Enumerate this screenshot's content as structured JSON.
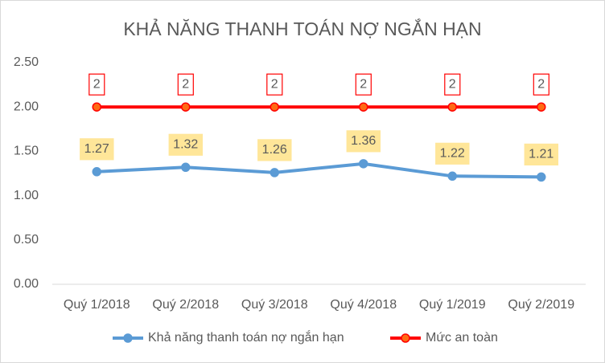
{
  "chart_data": {
    "type": "line",
    "title": "KHẢ NĂNG THANH TOÁN NỢ NGẮN HẠN",
    "categories": [
      "Quý 1/2018",
      "Quý 2/2018",
      "Quý 3/2018",
      "Quý 4/2018",
      "Quý 1/2019",
      "Quý 2/2019"
    ],
    "series": [
      {
        "name": "Khả năng thanh toán nợ ngắn hạn",
        "color": "#5b9bd5",
        "marker_color": "#5b9bd5",
        "label_fill": "#ffe699",
        "label_border": "#ffe699",
        "values": [
          1.27,
          1.32,
          1.26,
          1.36,
          1.22,
          1.21
        ]
      },
      {
        "name": "Mức an toàn",
        "color": "#ff0000",
        "marker_color": "#ff6a13",
        "label_fill": "#ffffff",
        "label_border": "#ff0000",
        "values": [
          2,
          2,
          2,
          2,
          2,
          2
        ]
      }
    ],
    "ylim": [
      0,
      2.5
    ],
    "yticks": [
      {
        "value": 0,
        "label": "0.00"
      },
      {
        "value": 0.5,
        "label": "0.50"
      },
      {
        "value": 1,
        "label": "1.00"
      },
      {
        "value": 1.5,
        "label": "1.50"
      },
      {
        "value": 2,
        "label": "2.00"
      },
      {
        "value": 2.5,
        "label": "2.50"
      }
    ],
    "grid": false,
    "legend": "bottom"
  }
}
